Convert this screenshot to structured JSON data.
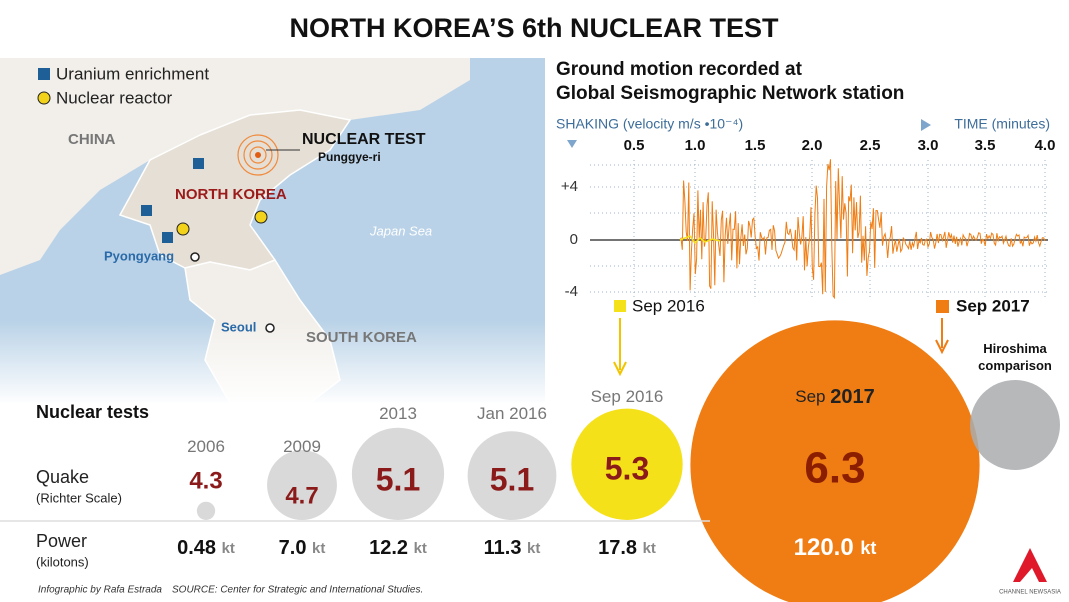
{
  "title": "NORTH KOREA’S 6th NUCLEAR TEST",
  "map": {
    "legend": [
      "Uranium enrichment",
      "Nuclear reactor"
    ],
    "labels": {
      "china": "CHINA",
      "north_korea": "NORTH KOREA",
      "south_korea": "SOUTH KOREA",
      "sea": "Japan Sea",
      "test": "NUCLEAR TEST",
      "site": "Punggye-ri",
      "pyongyang": "Pyongyang",
      "seoul": "Seoul"
    }
  },
  "seismograph": {
    "title": [
      "Ground motion recorded at",
      "Global Seismographic Network station"
    ],
    "y_label": "SHAKING (velocity m/s •10⁻⁴)",
    "x_label": "TIME (minutes)",
    "x_ticks": [
      "0.5",
      "1.0",
      "1.5",
      "2.0",
      "2.5",
      "3.0",
      "3.5",
      "4.0"
    ],
    "y_ticks": [
      "+4",
      "0",
      "-4"
    ],
    "markers": [
      "Sep 2016",
      "Sep 2017"
    ]
  },
  "tests": {
    "heading": "Nuclear tests",
    "quake_label": "Quake",
    "quake_unit": "(Richter Scale)",
    "power_label": "Power",
    "power_unit": "(kilotons)",
    "unit": "kt",
    "items": [
      {
        "date": "2006",
        "quake": "4.3",
        "power": 0.48
      },
      {
        "date": "2009",
        "quake": "4.7",
        "power": 7.0,
        "power_label": "7.0"
      },
      {
        "date": "2013",
        "quake": "5.1",
        "power": 12.2
      },
      {
        "date": "Jan 2016",
        "quake": "5.1",
        "power": 11.3
      },
      {
        "date": "Sep 2016",
        "quake": "5.3",
        "power": 17.8
      },
      {
        "date": "Sep",
        "date_bold": "2017",
        "quake": "6.3",
        "power": 120.0,
        "power_label": "120.0"
      }
    ],
    "hiroshima": "Hiroshima comparison"
  },
  "footer": {
    "credit": "Infographic by Rafa Estrada",
    "source": "SOURCE: Center for Strategic and International Studies.",
    "logo": "CHANNEL NEWSASIA"
  }
}
